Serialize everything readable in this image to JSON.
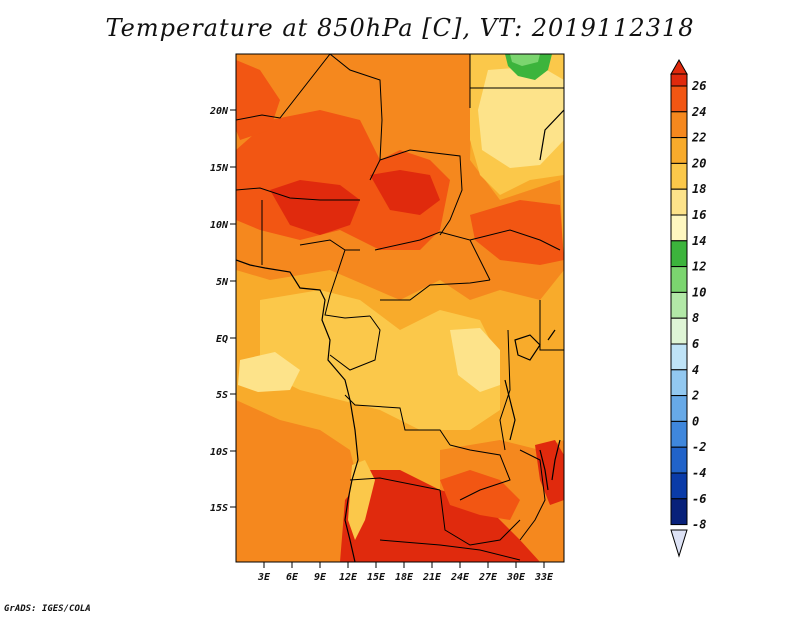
{
  "title": "Temperature at 850hPa [C], VT: 2019112318",
  "credit": "GrADS: IGES/COLA",
  "map": {
    "lat_labels": [
      "20N",
      "15N",
      "10N",
      "5N",
      "EQ",
      "5S",
      "10S",
      "15S"
    ],
    "lon_labels": [
      "3E",
      "6E",
      "9E",
      "12E",
      "15E",
      "18E",
      "21E",
      "24E",
      "27E",
      "30E",
      "33E"
    ]
  },
  "colorbar": {
    "labels": [
      "26",
      "24",
      "22",
      "20",
      "18",
      "16",
      "14",
      "12",
      "10",
      "8",
      "6",
      "4",
      "2",
      "0",
      "-2",
      "-4",
      "-6",
      "-8"
    ],
    "colors": [
      "#e02a0d",
      "#f25613",
      "#f5881e",
      "#f8ab2b",
      "#fbc84a",
      "#fde38a",
      "#fef7c0",
      "#3cb43c",
      "#7bd56f",
      "#b2e8a7",
      "#dff5d6",
      "#bfe3f7",
      "#92c8f0",
      "#67a9e7",
      "#3f87dc",
      "#2163c9",
      "#0a3ba8",
      "#08217a",
      "#000f4d"
    ]
  },
  "palette": {
    "hot": "#e02a0d",
    "warm": "#f25613",
    "orange": "#f5881e",
    "light_orange": "#f8ab2b",
    "yellow": "#fbc84a",
    "pale": "#fde38a",
    "green": "#3cb43c",
    "light_green": "#7bd56f"
  }
}
